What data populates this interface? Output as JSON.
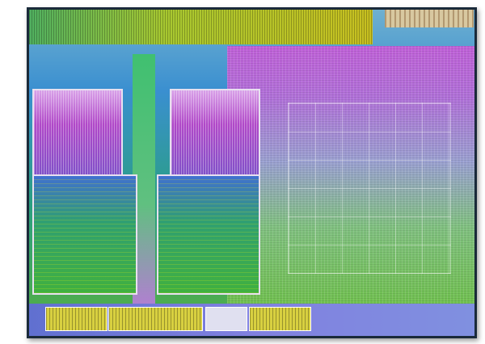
{
  "image": {
    "subject": "processor-die-shot",
    "colors": {
      "border": "#1a2a3a",
      "top_band": "#a8c830",
      "core_cache": "#b048c8",
      "core_logic": "#30a070",
      "gpu_region": "#b070d8"
    }
  }
}
